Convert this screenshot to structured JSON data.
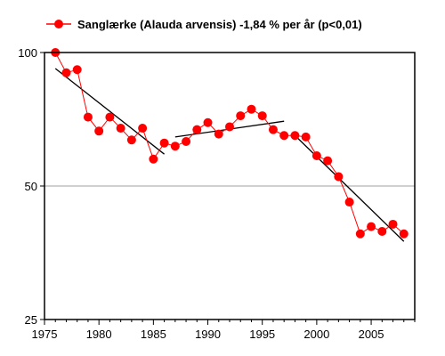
{
  "chart_data": {
    "type": "line",
    "legend": "Sanglærke (Alauda arvensis) -1,84 % per år (p<0,01)",
    "legend_position": "top",
    "y_scale": "log",
    "xlim": [
      1975,
      2009
    ],
    "ylim": [
      25,
      100
    ],
    "x_ticks": [
      1975,
      1980,
      1985,
      1990,
      1995,
      2000,
      2005
    ],
    "y_ticks": [
      25,
      50,
      100
    ],
    "gridlines_y": [
      50
    ],
    "colors": {
      "series": "#ff0000",
      "trend": "#000000",
      "grid": "#a0a0a0",
      "axis": "#000000"
    },
    "series": [
      {
        "name": "Sanglærke (Alauda arvensis) -1,84 % per år (p<0,01)",
        "x": [
          1976,
          1977,
          1978,
          1979,
          1980,
          1981,
          1982,
          1983,
          1984,
          1985,
          1986,
          1987,
          1988,
          1989,
          1990,
          1991,
          1992,
          1993,
          1994,
          1995,
          1996,
          1997,
          1998,
          1999,
          2000,
          2001,
          2002,
          2003,
          2004,
          2005,
          2006,
          2007,
          2008
        ],
        "y": [
          100,
          90,
          91.5,
          71.5,
          66.5,
          71.5,
          67.5,
          63.5,
          67.5,
          57.5,
          62.5,
          61.5,
          63,
          67,
          69.5,
          65.5,
          68,
          72,
          74.5,
          72,
          67,
          65,
          65,
          64.5,
          58.5,
          57,
          52.5,
          46,
          39,
          40.5,
          39.5,
          41,
          39
        ]
      }
    ],
    "trend_lines": [
      {
        "x": [
          1976,
          1986
        ],
        "y": [
          92,
          59
        ]
      },
      {
        "x": [
          1987,
          1997
        ],
        "y": [
          64.5,
          70
        ]
      },
      {
        "x": [
          1998,
          2008
        ],
        "y": [
          65,
          37.5
        ]
      }
    ]
  }
}
